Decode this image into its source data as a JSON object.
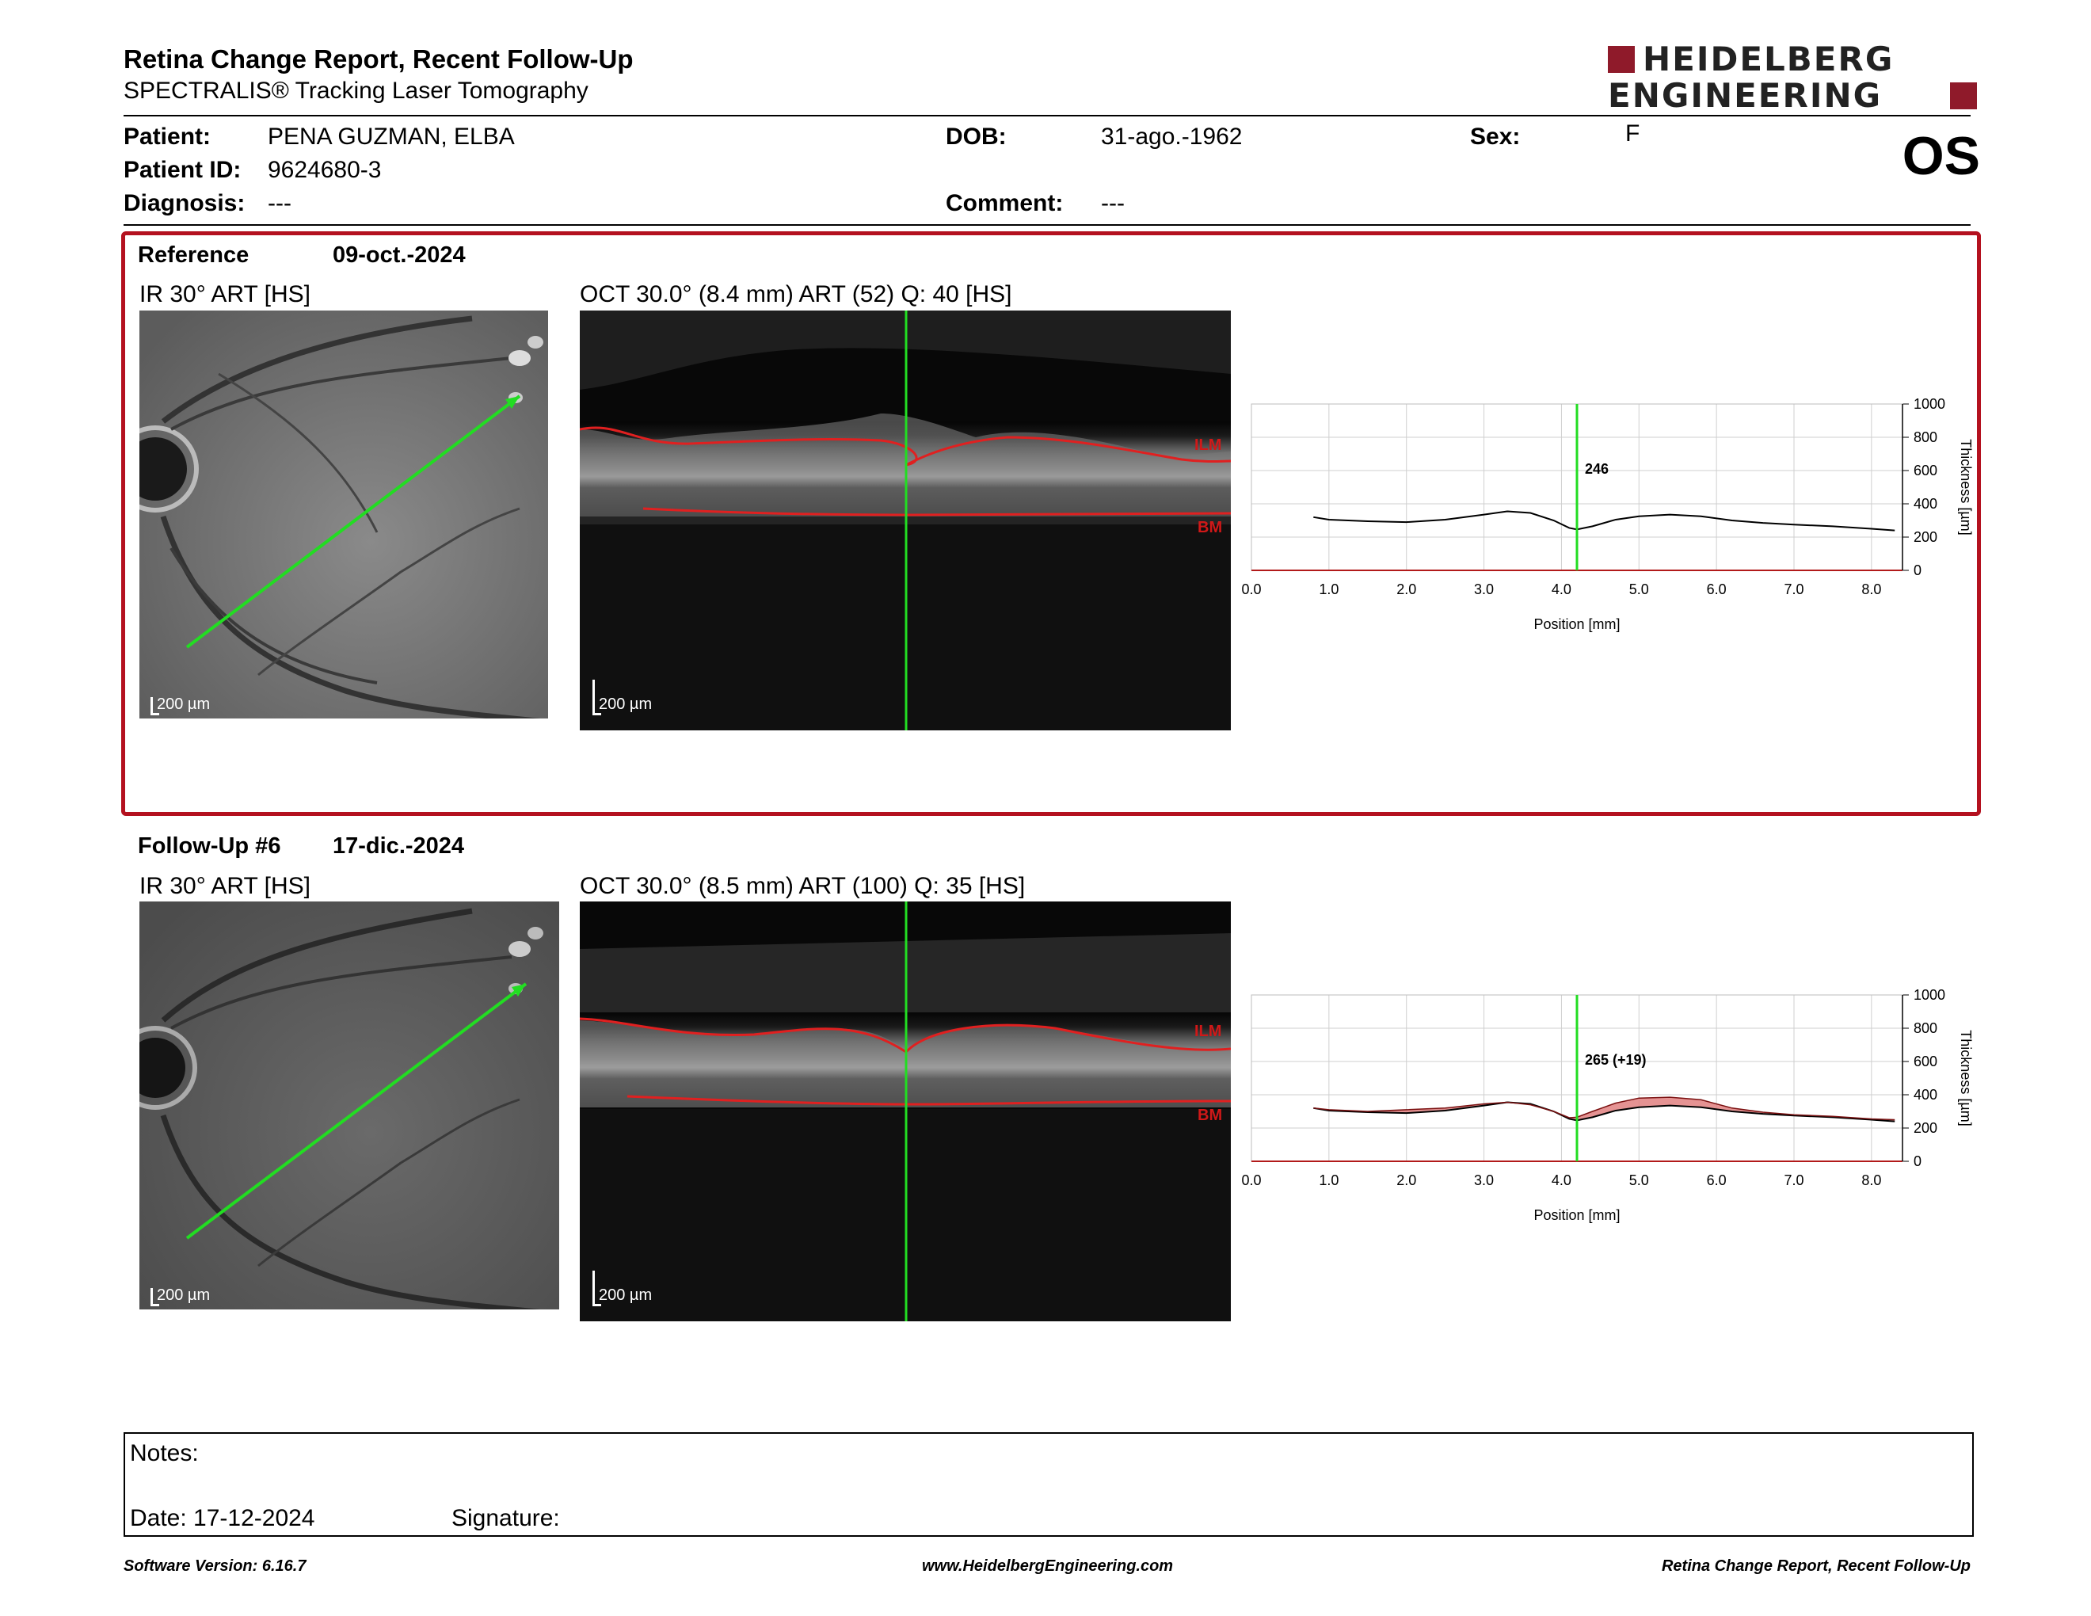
{
  "header": {
    "title": "Retina Change Report, Recent Follow-Up",
    "subtitle": "SPECTRALIS® Tracking Laser Tomography",
    "logo_line1": "HEIDELBERG",
    "logo_line2": "ENGINEERING",
    "eye": "OS"
  },
  "patient": {
    "name_label": "Patient:",
    "name": "PENA GUZMAN, ELBA",
    "id_label": "Patient ID:",
    "id": "9624680-3",
    "diagnosis_label": "Diagnosis:",
    "diagnosis": "---",
    "dob_label": "DOB:",
    "dob": "31-ago.-1962",
    "comment_label": "Comment:",
    "comment": "---",
    "sex_label": "Sex:",
    "sex": "F"
  },
  "reference": {
    "label": "Reference",
    "date": "09-oct.-2024",
    "ir_caption": "IR 30° ART [HS]",
    "oct_caption": "OCT 30.0° (8.4 mm) ART (52) Q: 40 [HS]",
    "scale_ir": "200 µm",
    "scale_oct": "200 µm",
    "ilm": "ILM",
    "bm": "BM",
    "marker_label": "246"
  },
  "followup": {
    "label": "Follow-Up #6",
    "date": "17-dic.-2024",
    "ir_caption": "IR 30° ART [HS]",
    "oct_caption": "OCT 30.0° (8.5 mm) ART (100) Q: 35 [HS]",
    "scale_ir": "200 µm",
    "scale_oct": "200 µm",
    "ilm": "ILM",
    "bm": "BM",
    "marker_label": "265 (+19)"
  },
  "chart_data": [
    {
      "type": "line",
      "xlabel": "Position [mm]",
      "ylabel": "Thickness [µm]",
      "xlim": [
        0,
        8.4
      ],
      "ylim": [
        0,
        1000
      ],
      "xticks": [
        "0.0",
        "1.0",
        "2.0",
        "3.0",
        "4.0",
        "5.0",
        "6.0",
        "7.0",
        "8.0"
      ],
      "yticks": [
        "0",
        "200",
        "400",
        "600",
        "800",
        "1000"
      ],
      "grid": true,
      "marker_x": 4.2,
      "marker_value": 246,
      "series": [
        {
          "x": [
            0.8,
            1.0,
            1.5,
            2.0,
            2.5,
            3.0,
            3.3,
            3.6,
            3.9,
            4.1,
            4.2,
            4.4,
            4.7,
            5.0,
            5.4,
            5.8,
            6.2,
            6.6,
            7.0,
            7.5,
            8.0,
            8.3
          ],
          "values": [
            320,
            305,
            295,
            290,
            305,
            335,
            355,
            345,
            300,
            255,
            246,
            265,
            305,
            325,
            335,
            325,
            300,
            285,
            275,
            265,
            250,
            240
          ]
        }
      ]
    },
    {
      "type": "area",
      "xlabel": "Position [mm]",
      "ylabel": "Thickness [µm]",
      "xlim": [
        0,
        8.4
      ],
      "ylim": [
        0,
        1000
      ],
      "xticks": [
        "0.0",
        "1.0",
        "2.0",
        "3.0",
        "4.0",
        "5.0",
        "6.0",
        "7.0",
        "8.0"
      ],
      "yticks": [
        "0",
        "200",
        "400",
        "600",
        "800",
        "1000"
      ],
      "grid": true,
      "marker_x": 4.2,
      "marker_value": 265,
      "marker_change": 19,
      "series": [
        {
          "name": "Reference",
          "x": [
            0.8,
            1.0,
            1.5,
            2.0,
            2.5,
            3.0,
            3.3,
            3.6,
            3.9,
            4.1,
            4.2,
            4.4,
            4.7,
            5.0,
            5.4,
            5.8,
            6.2,
            6.6,
            7.0,
            7.5,
            8.0,
            8.3
          ],
          "values": [
            320,
            305,
            295,
            290,
            305,
            335,
            355,
            345,
            300,
            255,
            246,
            265,
            305,
            325,
            335,
            325,
            300,
            285,
            275,
            265,
            250,
            240
          ]
        },
        {
          "name": "Follow-Up",
          "x": [
            0.8,
            1.0,
            1.5,
            2.0,
            2.5,
            3.0,
            3.3,
            3.6,
            3.9,
            4.1,
            4.2,
            4.4,
            4.7,
            5.0,
            5.4,
            5.8,
            6.2,
            6.6,
            7.0,
            7.5,
            8.0,
            8.3
          ],
          "values": [
            320,
            310,
            300,
            310,
            320,
            345,
            355,
            340,
            300,
            262,
            265,
            300,
            350,
            380,
            385,
            370,
            320,
            295,
            280,
            270,
            255,
            250
          ]
        }
      ]
    }
  ],
  "notes": {
    "notes_label": "Notes:",
    "date_label": "Date: 17-12-2024",
    "signature_label": "Signature:"
  },
  "footer": {
    "left": "Software Version: 6.16.7",
    "center": "www.HeidelbergEngineering.com",
    "right": "Retina Change Report, Recent Follow-Up"
  }
}
